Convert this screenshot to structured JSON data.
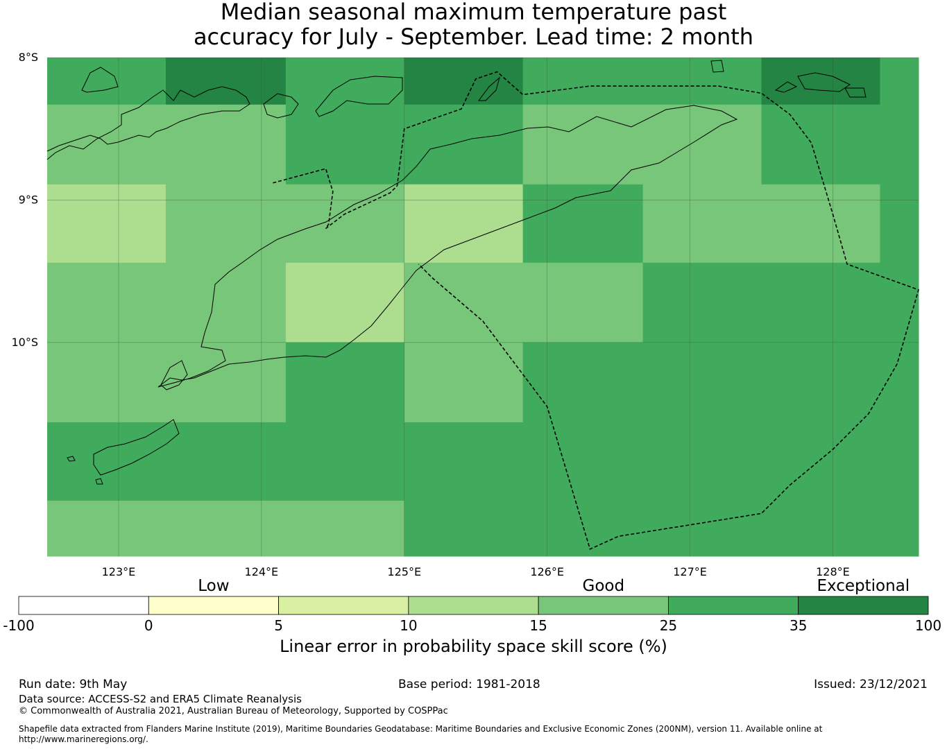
{
  "title": {
    "line1": "Median seasonal maximum temperature past",
    "line2": "accuracy for July - September. Lead time: 2 month"
  },
  "map": {
    "lat_range": [
      -11.5,
      -8.0
    ],
    "lon_range": [
      122.5,
      128.6
    ],
    "lat_ticks": [
      {
        "value": -8,
        "label": "8°S"
      },
      {
        "value": -9,
        "label": "9°S"
      },
      {
        "value": -10,
        "label": "10°S"
      }
    ],
    "lon_ticks": [
      {
        "value": 123,
        "label": "123°E"
      },
      {
        "value": 124,
        "label": "124°E"
      },
      {
        "value": 125,
        "label": "125°E"
      },
      {
        "value": 126,
        "label": "126°E"
      },
      {
        "value": 127,
        "label": "127°E"
      },
      {
        "value": 128,
        "label": "128°E"
      }
    ],
    "grid_lat_edges": [
      -8.0,
      -8.33,
      -8.89,
      -9.44,
      -10.0,
      -10.56,
      -11.11,
      -11.5
    ],
    "grid_lon_edges": [
      122.5,
      123.33,
      124.17,
      125.0,
      125.83,
      126.67,
      127.5,
      128.33,
      128.6
    ],
    "skill_class_grid": [
      [
        5,
        6,
        5,
        6,
        5,
        5,
        6,
        5
      ],
      [
        4,
        4,
        5,
        5,
        4,
        4,
        5,
        5
      ],
      [
        3,
        4,
        4,
        3,
        5,
        4,
        4,
        5
      ],
      [
        4,
        4,
        3,
        4,
        4,
        5,
        5,
        5
      ],
      [
        4,
        4,
        5,
        4,
        5,
        5,
        5,
        5
      ],
      [
        5,
        5,
        5,
        5,
        5,
        5,
        5,
        5
      ],
      [
        4,
        4,
        4,
        5,
        5,
        5,
        5,
        5
      ]
    ],
    "eez_boundary": [
      [
        124.08,
        -8.88
      ],
      [
        124.45,
        -8.78
      ],
      [
        124.5,
        -8.94
      ],
      [
        124.47,
        -9.17
      ],
      [
        124.45,
        -9.2
      ],
      [
        124.58,
        -9.1
      ],
      [
        124.9,
        -8.95
      ],
      [
        124.95,
        -8.9
      ],
      [
        125.0,
        -8.5
      ],
      [
        125.4,
        -8.36
      ],
      [
        125.5,
        -8.15
      ],
      [
        125.65,
        -8.1
      ],
      [
        125.83,
        -8.26
      ],
      [
        126.3,
        -8.2
      ],
      [
        127.2,
        -8.2
      ],
      [
        127.5,
        -8.25
      ],
      [
        127.7,
        -8.4
      ],
      [
        127.85,
        -8.6
      ],
      [
        128.0,
        -9.1
      ],
      [
        128.1,
        -9.45
      ],
      [
        128.6,
        -9.63
      ],
      [
        128.45,
        -10.15
      ],
      [
        128.25,
        -10.5
      ],
      [
        128.0,
        -10.75
      ],
      [
        127.7,
        -11.0
      ],
      [
        127.5,
        -11.2
      ],
      [
        126.5,
        -11.36
      ],
      [
        126.3,
        -11.45
      ],
      [
        126.0,
        -10.45
      ],
      [
        125.85,
        -10.25
      ],
      [
        125.55,
        -9.85
      ],
      [
        125.2,
        -9.55
      ],
      [
        125.1,
        -9.45
      ]
    ]
  },
  "colorbar": {
    "categories": [
      {
        "label": "Low",
        "value": 2.5
      },
      {
        "label": "Good",
        "value": 20
      },
      {
        "label": "Exceptional",
        "value": 67.5
      }
    ],
    "ticks": [
      "-100",
      "0",
      "5",
      "10",
      "15",
      "25",
      "35",
      "100"
    ],
    "bins": [
      {
        "from": -100,
        "to": 0,
        "color": "#ffffff"
      },
      {
        "from": 0,
        "to": 5,
        "color": "#ffffcc"
      },
      {
        "from": 5,
        "to": 10,
        "color": "#d9f0a3"
      },
      {
        "from": 10,
        "to": 15,
        "color": "#addd8e"
      },
      {
        "from": 15,
        "to": 25,
        "color": "#78c679"
      },
      {
        "from": 25,
        "to": 35,
        "color": "#41ab5d"
      },
      {
        "from": 35,
        "to": 100,
        "color": "#238443"
      }
    ],
    "label": "Linear error in probability space skill score (%)"
  },
  "footer": {
    "run_date": "Run date: 9th May",
    "base_period": "Base period: 1981-2018",
    "issued": "Issued: 23/12/2021",
    "data_source": "Data source: ACCESS-S2 and ERA5 Climate Reanalysis",
    "copyright": "© Commonwealth of Australia 2021, Australian Bureau of Meteorology, Supported by COSPPac",
    "shapefile_line1": "Shapefile data extracted from Flanders Marine Institute (2019), Maritime Boundaries Geodatabase: Maritime Boundaries and Exclusive Economic Zones (200NM), version 11. Available online at",
    "shapefile_line2": "http://www.marineregions.org/."
  }
}
